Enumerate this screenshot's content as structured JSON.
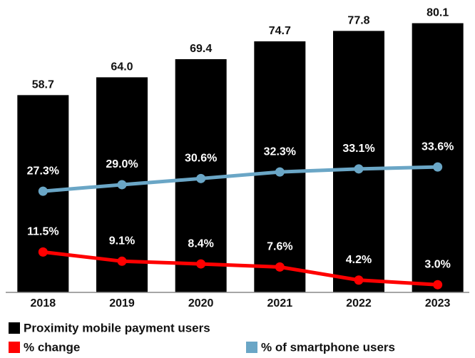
{
  "chart_data": {
    "type": "bar",
    "categories": [
      "2018",
      "2019",
      "2020",
      "2021",
      "2022",
      "2023"
    ],
    "ylim": [
      0,
      87
    ],
    "y2lim": [
      1,
      77
    ],
    "series": [
      {
        "name": "Proximity mobile payment users",
        "color": "#000000",
        "type": "bar",
        "values": [
          58.7,
          64.0,
          69.4,
          74.7,
          77.8,
          80.1
        ],
        "value_labels": [
          "58.7",
          "64.0",
          "69.4",
          "74.7",
          "77.8",
          "80.1"
        ]
      },
      {
        "name": "% change",
        "color": "#ff0000",
        "type": "line",
        "axis": "y2",
        "values": [
          11.5,
          9.1,
          8.4,
          7.6,
          4.2,
          3.0
        ],
        "value_labels": [
          "11.5%",
          "9.1%",
          "8.4%",
          "7.6%",
          "4.2%",
          "3.0%"
        ]
      },
      {
        "name": "% of smartphone users",
        "color": "#6aa6c6",
        "type": "line",
        "axis": "y2",
        "values": [
          27.3,
          29.0,
          30.6,
          32.3,
          33.1,
          33.6
        ],
        "value_labels": [
          "27.3%",
          "29.0%",
          "30.6%",
          "32.3%",
          "33.1%",
          "33.6%"
        ]
      }
    ]
  }
}
